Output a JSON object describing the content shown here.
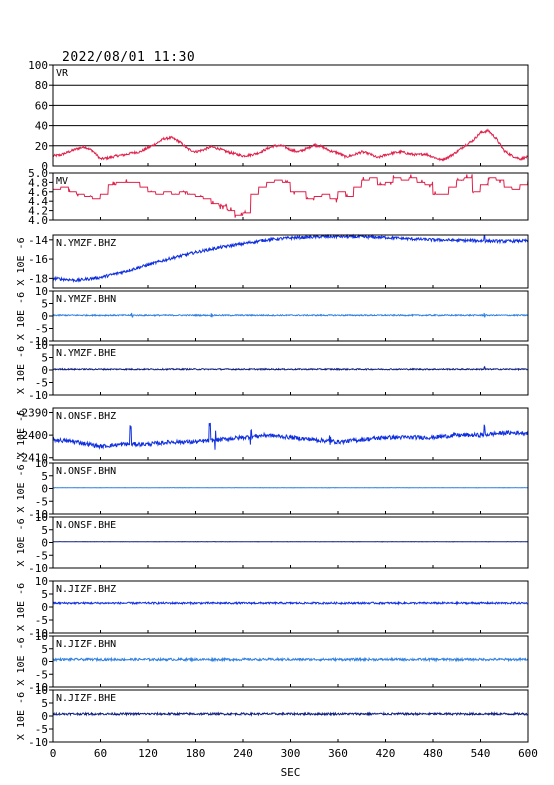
{
  "header": {
    "title": "2022/08/01 11:30"
  },
  "chart_data": {
    "type": "line",
    "xlabel": "SEC",
    "xlim": [
      0,
      600
    ],
    "xticks": [
      0,
      60,
      120,
      180,
      240,
      300,
      360,
      420,
      480,
      540,
      600
    ],
    "panels": [
      {
        "label": "VR",
        "ylim": [
          0,
          100
        ],
        "yticks": [
          20,
          40,
          60,
          80,
          100
        ],
        "ytick_labels": [
          "20",
          "40",
          "60",
          "80",
          "100"
        ],
        "bottom_label": "0",
        "gridlines": [
          20,
          40,
          60,
          80
        ],
        "ylabel": "",
        "color": "#e0204a",
        "x": [
          0,
          10,
          20,
          30,
          40,
          50,
          60,
          70,
          80,
          90,
          100,
          110,
          120,
          130,
          140,
          150,
          160,
          170,
          180,
          190,
          200,
          210,
          220,
          230,
          240,
          250,
          260,
          270,
          280,
          290,
          300,
          310,
          320,
          330,
          340,
          350,
          360,
          370,
          380,
          390,
          400,
          410,
          420,
          430,
          440,
          450,
          460,
          470,
          480,
          490,
          500,
          510,
          520,
          530,
          540,
          550,
          560,
          570,
          580,
          590,
          600
        ],
        "y": [
          10,
          11,
          14,
          17,
          19,
          15,
          7,
          8,
          10,
          11,
          13,
          14,
          18,
          22,
          27,
          28,
          24,
          17,
          14,
          16,
          19,
          17,
          14,
          12,
          10,
          11,
          13,
          17,
          20,
          20,
          16,
          14,
          17,
          21,
          19,
          15,
          13,
          9,
          11,
          14,
          12,
          8,
          11,
          13,
          14,
          12,
          11,
          12,
          9,
          6,
          9,
          14,
          20,
          25,
          33,
          35,
          27,
          15,
          10,
          7,
          9
        ],
        "noise": 1.2
      },
      {
        "label": "MV",
        "ylim": [
          4.0,
          5.0
        ],
        "yticks": [
          4.0,
          4.2,
          4.4,
          4.6,
          4.8,
          5.0
        ],
        "ytick_labels": [
          "4.0",
          "4.2",
          "4.4",
          "4.6",
          "4.8",
          "5.0"
        ],
        "gridlines": [],
        "ylabel": "",
        "color": "#e0204a",
        "step": true,
        "x": [
          0,
          10,
          20,
          30,
          40,
          50,
          60,
          70,
          80,
          90,
          100,
          110,
          120,
          130,
          140,
          150,
          160,
          170,
          180,
          190,
          200,
          210,
          220,
          230,
          240,
          250,
          260,
          270,
          280,
          290,
          300,
          310,
          320,
          330,
          340,
          350,
          360,
          370,
          380,
          390,
          400,
          410,
          420,
          430,
          440,
          450,
          460,
          470,
          480,
          490,
          500,
          510,
          520,
          530,
          540,
          550,
          560,
          570,
          580,
          590,
          600
        ],
        "y": [
          4.65,
          4.7,
          4.6,
          4.55,
          4.5,
          4.45,
          4.55,
          4.75,
          4.8,
          4.8,
          4.8,
          4.7,
          4.6,
          4.55,
          4.6,
          4.55,
          4.6,
          4.55,
          4.5,
          4.45,
          4.35,
          4.3,
          4.2,
          4.1,
          4.15,
          4.55,
          4.7,
          4.8,
          4.85,
          4.8,
          4.6,
          4.6,
          4.45,
          4.5,
          4.55,
          4.45,
          4.6,
          4.5,
          4.7,
          4.85,
          4.9,
          4.75,
          4.8,
          4.9,
          4.85,
          4.9,
          4.8,
          4.75,
          4.55,
          4.55,
          4.7,
          4.85,
          4.9,
          4.6,
          4.75,
          4.9,
          4.85,
          4.7,
          4.65,
          4.75,
          4.85
        ],
        "noise": 0.05
      },
      {
        "label": "N.YMZF.BHZ",
        "ylim": [
          -19,
          -13.5
        ],
        "yticks": [
          -14,
          -16,
          -18
        ],
        "ytick_labels": [
          "-14",
          "-16",
          "-18"
        ],
        "gridlines": [],
        "ylabel": "X 10E -6",
        "color": "#1030e0",
        "x": [
          0,
          30,
          60,
          90,
          120,
          150,
          180,
          210,
          240,
          270,
          300,
          330,
          360,
          390,
          420,
          450,
          480,
          510,
          540,
          570,
          600
        ],
        "y": [
          -18.0,
          -18.2,
          -17.9,
          -17.3,
          -16.6,
          -15.9,
          -15.3,
          -14.8,
          -14.4,
          -14.0,
          -13.8,
          -13.7,
          -13.65,
          -13.7,
          -13.75,
          -13.9,
          -14.0,
          -14.05,
          -14.1,
          -14.15,
          -14.1
        ],
        "noise": 0.15,
        "spikes": [
          [
            545,
            0.9
          ]
        ]
      },
      {
        "label": "N.YMZF.BHN",
        "ylim": [
          -10,
          10
        ],
        "yticks": [
          10,
          5,
          0,
          -5,
          -10
        ],
        "ytick_labels": [
          "10",
          "5",
          "0",
          "-5",
          "-10"
        ],
        "gridlines": [],
        "ylabel": "X 10E -6",
        "color": "#3080e0",
        "x": [
          0,
          600
        ],
        "y": [
          0.3,
          0.3
        ],
        "noise": 0.25,
        "spikes": [
          [
            100,
            0.8
          ],
          [
            200,
            0.6
          ],
          [
            545,
            1.0
          ]
        ]
      },
      {
        "label": "N.YMZF.BHE",
        "ylim": [
          -10,
          10
        ],
        "yticks": [
          10,
          5,
          0,
          -5,
          -10
        ],
        "ytick_labels": [
          "10",
          "5",
          "0",
          "-5",
          "-10"
        ],
        "gridlines": [],
        "ylabel": "X 10E -6",
        "color": "#102080",
        "x": [
          0,
          600
        ],
        "y": [
          0.3,
          0.3
        ],
        "noise": 0.25,
        "spikes": [
          [
            545,
            0.8
          ]
        ]
      },
      {
        "label": "N.ONSF.BHZ",
        "ylim": [
          -2411,
          -2388
        ],
        "yticks": [
          -2390,
          -2400,
          -2410
        ],
        "ytick_labels": [
          "-2390",
          "-2400",
          "-2410"
        ],
        "gridlines": [],
        "ylabel": "X 10E -6",
        "color": "#1030e0",
        "x": [
          0,
          30,
          60,
          90,
          120,
          150,
          180,
          210,
          240,
          270,
          300,
          330,
          360,
          390,
          420,
          450,
          480,
          510,
          540,
          570,
          600
        ],
        "y": [
          -2402,
          -2403,
          -2405,
          -2404,
          -2404,
          -2403,
          -2403,
          -2402,
          -2401,
          -2400,
          -2401,
          -2402,
          -2403,
          -2402,
          -2401,
          -2401,
          -2401,
          -2400,
          -2400,
          -2399,
          -2399
        ],
        "noise": 0.9,
        "spikes": [
          [
            98,
            8
          ],
          [
            198,
            7
          ],
          [
            205,
            5
          ],
          [
            250,
            3
          ],
          [
            350,
            2
          ],
          [
            545,
            4
          ]
        ]
      },
      {
        "label": "N.ONSF.BHN",
        "ylim": [
          -10,
          10
        ],
        "yticks": [
          10,
          5,
          0,
          -5,
          -10
        ],
        "ytick_labels": [
          "10",
          "5",
          "0",
          "-5",
          "-10"
        ],
        "gridlines": [],
        "ylabel": "X 10E -6",
        "color": "#3080e0",
        "x": [
          0,
          600
        ],
        "y": [
          0.3,
          0.3
        ],
        "noise": 0.05
      },
      {
        "label": "N.ONSF.BHE",
        "ylim": [
          -10,
          10
        ],
        "yticks": [
          10,
          5,
          0,
          -5,
          -10
        ],
        "ytick_labels": [
          "10",
          "5",
          "0",
          "-5",
          "-10"
        ],
        "gridlines": [],
        "ylabel": "X 10E -6",
        "color": "#102080",
        "x": [
          0,
          600
        ],
        "y": [
          0.3,
          0.3
        ],
        "noise": 0.05
      },
      {
        "label": "N.JIZF.BHZ",
        "ylim": [
          -10,
          10
        ],
        "yticks": [
          10,
          5,
          0,
          -5,
          -10
        ],
        "ytick_labels": [
          "10",
          "5",
          "0",
          "-5",
          "-10"
        ],
        "gridlines": [],
        "ylabel": "X 10E -6",
        "color": "#1030e0",
        "x": [
          0,
          600
        ],
        "y": [
          1.5,
          1.5
        ],
        "noise": 0.35
      },
      {
        "label": "N.JIZF.BHN",
        "ylim": [
          -10,
          10
        ],
        "yticks": [
          10,
          5,
          0,
          -5,
          -10
        ],
        "ytick_labels": [
          "10",
          "5",
          "0",
          "-5",
          "-10"
        ],
        "gridlines": [],
        "ylabel": "X 10E -6",
        "color": "#3080e0",
        "x": [
          0,
          600
        ],
        "y": [
          0.8,
          0.8
        ],
        "noise": 0.45
      },
      {
        "label": "N.JIZF.BHE",
        "ylim": [
          -10,
          10
        ],
        "yticks": [
          10,
          5,
          0,
          -5,
          -10
        ],
        "ytick_labels": [
          "10",
          "5",
          "0",
          "-5",
          "-10"
        ],
        "gridlines": [],
        "ylabel": "X 10E -6",
        "color": "#102080",
        "x": [
          0,
          600
        ],
        "y": [
          0.8,
          0.8
        ],
        "noise": 0.4
      }
    ]
  }
}
